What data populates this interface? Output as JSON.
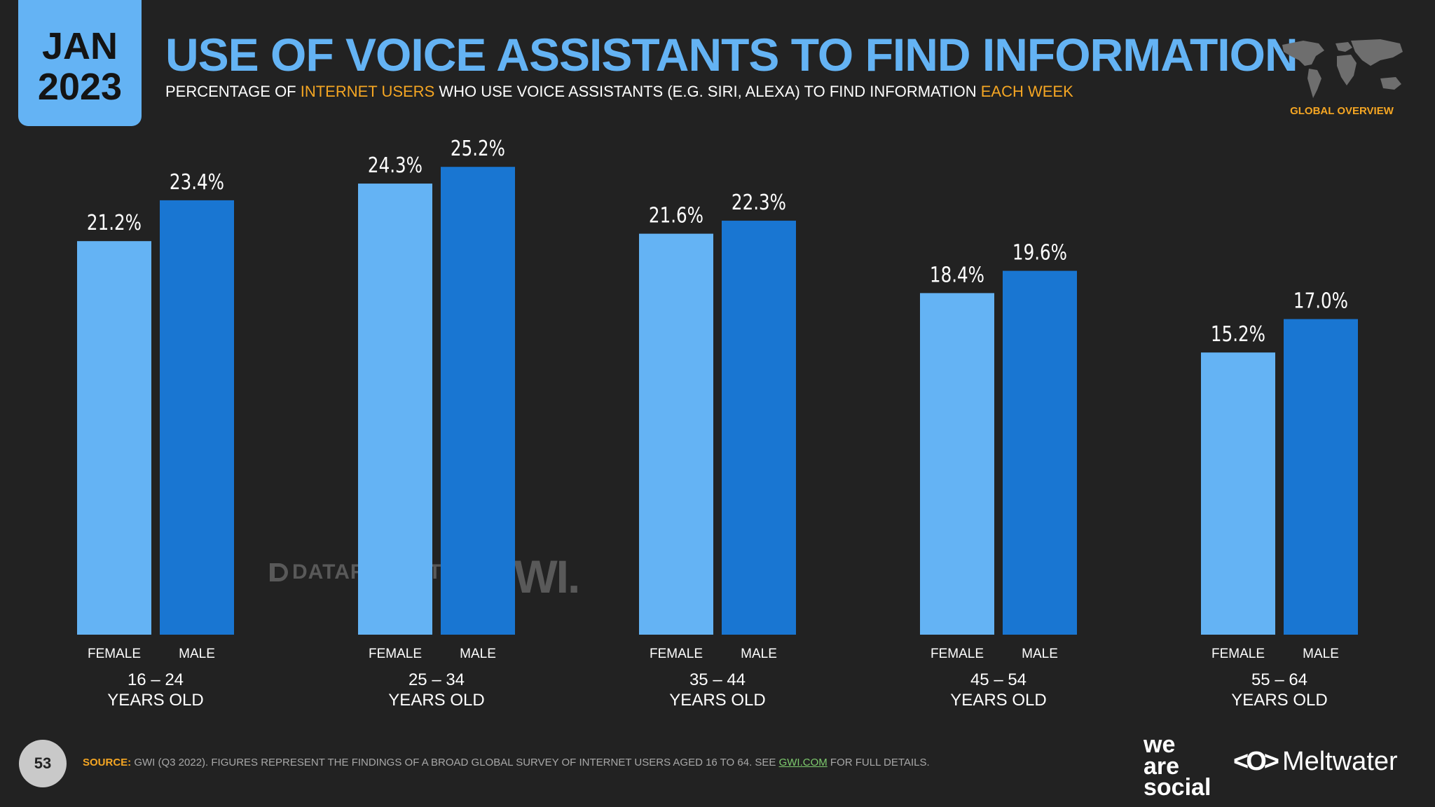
{
  "header": {
    "month": "JAN",
    "year": "2023",
    "title": "USE OF VOICE ASSISTANTS TO FIND INFORMATION",
    "subtitle_parts": [
      "PERCENTAGE OF ",
      "INTERNET USERS",
      " WHO USE VOICE ASSISTANTS (E.G. SIRI, ALEXA) TO FIND INFORMATION ",
      "EACH WEEK"
    ],
    "badge": "GLOBAL OVERVIEW"
  },
  "colors": {
    "background": "#222222",
    "female": "#64b3f4",
    "male": "#1976d2",
    "accent": "#f5a623",
    "title": "#64b3f4"
  },
  "watermarks": {
    "datareportal": "DATAREPORTAL",
    "gwi": "GWI."
  },
  "footer": {
    "page_number": "53",
    "source_label": "SOURCE:",
    "source_text": " GWI (Q3 2022). FIGURES REPRESENT THE FINDINGS OF A BROAD GLOBAL SURVEY OF INTERNET USERS AGED 16 TO 64. SEE ",
    "source_link": "GWI.COM",
    "source_tail": " FOR FULL DETAILS.",
    "brand_we": "we",
    "brand_are": "are",
    "brand_social": "social",
    "brand_meltwater": "Meltwater",
    "meltwater_icon": "<O>"
  },
  "chart_data": {
    "type": "bar",
    "categories": [
      "16 – 24|YEARS OLD",
      "25 – 34|YEARS OLD",
      "35 – 44|YEARS OLD",
      "45 – 54|YEARS OLD",
      "55 – 64|YEARS OLD"
    ],
    "category_lines": [
      [
        "16 – 24",
        "YEARS OLD"
      ],
      [
        "25 – 34",
        "YEARS OLD"
      ],
      [
        "35 – 44",
        "YEARS OLD"
      ],
      [
        "45 – 54",
        "YEARS OLD"
      ],
      [
        "55 – 64",
        "YEARS OLD"
      ]
    ],
    "series": [
      {
        "name": "FEMALE",
        "values": [
          21.2,
          24.3,
          21.6,
          18.4,
          15.2
        ],
        "labels": [
          "21.2%",
          "24.3%",
          "21.6%",
          "18.4%",
          "15.2%"
        ]
      },
      {
        "name": "MALE",
        "values": [
          23.4,
          25.2,
          22.3,
          19.6,
          17.0
        ],
        "labels": [
          "23.4%",
          "25.2%",
          "22.3%",
          "19.6%",
          "17.0%"
        ]
      }
    ],
    "ylim": [
      0,
      26
    ],
    "grid": false,
    "legend": "below-bars"
  }
}
